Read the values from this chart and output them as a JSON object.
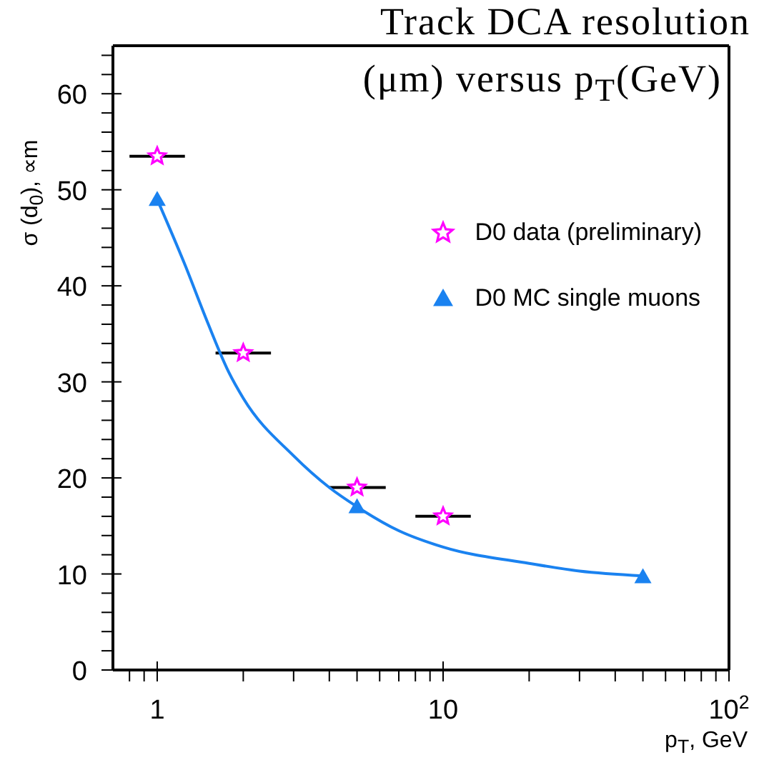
{
  "chart_data": {
    "type": "scatter",
    "title": "Track DCA resolution",
    "subtitle": "(μm) versus p$_{T}$(GeV)",
    "xlabel": "p$_{T}$, GeV",
    "ylabel": "σ (d$_{0}$), ∝m",
    "log": "x",
    "grid": false,
    "legend": "right",
    "xlim": [
      0.7,
      100
    ],
    "ylim": [
      0,
      65
    ],
    "xticks": [
      {
        "value": 0.8,
        "label": null
      },
      {
        "value": 0.9,
        "label": null
      },
      1,
      {
        "value": 2,
        "label": null
      },
      {
        "value": 3,
        "label": null
      },
      {
        "value": 4,
        "label": null
      },
      {
        "value": 5,
        "label": null
      },
      {
        "value": 6,
        "label": null
      },
      {
        "value": 7,
        "label": null
      },
      {
        "value": 8,
        "label": null
      },
      {
        "value": 9,
        "label": null
      },
      10,
      {
        "value": 20,
        "label": null
      },
      {
        "value": 30,
        "label": null
      },
      {
        "value": 40,
        "label": null
      },
      {
        "value": 50,
        "label": null
      },
      {
        "value": 60,
        "label": null
      },
      {
        "value": 70,
        "label": null
      },
      {
        "value": 80,
        "label": null
      },
      {
        "value": 90,
        "label": null
      },
      {
        "value": 100,
        "label": "10$^{2}$"
      }
    ],
    "yticks": [
      0,
      {
        "value": 2,
        "label": null
      },
      {
        "value": 4,
        "label": null
      },
      {
        "value": 6,
        "label": null
      },
      {
        "value": 8,
        "label": null
      },
      10,
      {
        "value": 12,
        "label": null
      },
      {
        "value": 14,
        "label": null
      },
      {
        "value": 16,
        "label": null
      },
      {
        "value": 18,
        "label": null
      },
      20,
      {
        "value": 22,
        "label": null
      },
      {
        "value": 24,
        "label": null
      },
      {
        "value": 26,
        "label": null
      },
      {
        "value": 28,
        "label": null
      },
      30,
      {
        "value": 32,
        "label": null
      },
      {
        "value": 34,
        "label": null
      },
      {
        "value": 36,
        "label": null
      },
      {
        "value": 38,
        "label": null
      },
      40,
      {
        "value": 42,
        "label": null
      },
      {
        "value": 44,
        "label": null
      },
      {
        "value": 46,
        "label": null
      },
      {
        "value": 48,
        "label": null
      },
      50,
      {
        "value": 52,
        "label": null
      },
      {
        "value": 54,
        "label": null
      },
      {
        "value": 56,
        "label": null
      },
      {
        "value": 58,
        "label": null
      },
      60,
      {
        "value": 62,
        "label": null
      },
      {
        "value": 64,
        "label": null
      }
    ],
    "series": [
      {
        "name": "D0 data (preliminary)",
        "marker": "star",
        "color": "#ff00ff",
        "x": [
          1,
          2,
          5,
          10
        ],
        "values": [
          53.5,
          33,
          19,
          16
        ],
        "xerrors": [
          [
            0.8,
            1.25
          ],
          [
            1.6,
            2.5
          ],
          [
            4,
            6.3
          ],
          [
            8,
            12.5
          ]
        ]
      },
      {
        "name": "D0 MC single muons",
        "marker": "triangle",
        "color": "#1a82f0",
        "x": [
          1,
          5,
          50
        ],
        "values": [
          49,
          17,
          9.7
        ]
      },
      {
        "type": "line",
        "marker": "none",
        "color": "#1a82f0",
        "x": [
          1,
          1.25,
          1.5,
          1.78,
          2,
          3,
          4,
          5,
          7,
          10,
          20,
          30,
          50
        ],
        "values": [
          49,
          42.2,
          36.2,
          31,
          28.3,
          22.3,
          19,
          17,
          14.5,
          12.8,
          11.1,
          10.3,
          9.8
        ]
      }
    ]
  }
}
